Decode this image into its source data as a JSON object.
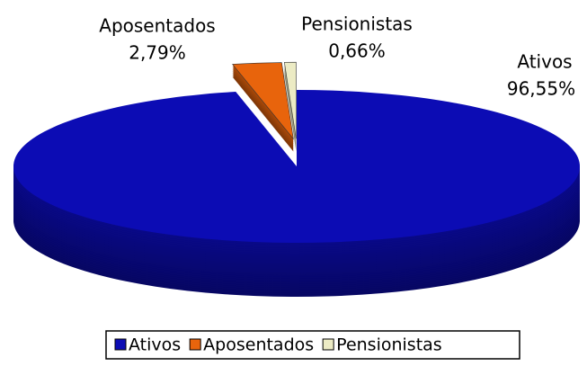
{
  "chart_data": {
    "type": "pie",
    "categories": [
      "Ativos",
      "Aposentados",
      "Pensionistas"
    ],
    "values": [
      96.55,
      2.79,
      0.66
    ],
    "value_labels": [
      "96,55%",
      "2,79%",
      "0,66%"
    ],
    "colors": [
      "#0c0cb4",
      "#e8640c",
      "#ecebc4"
    ],
    "legend": "bottom"
  }
}
